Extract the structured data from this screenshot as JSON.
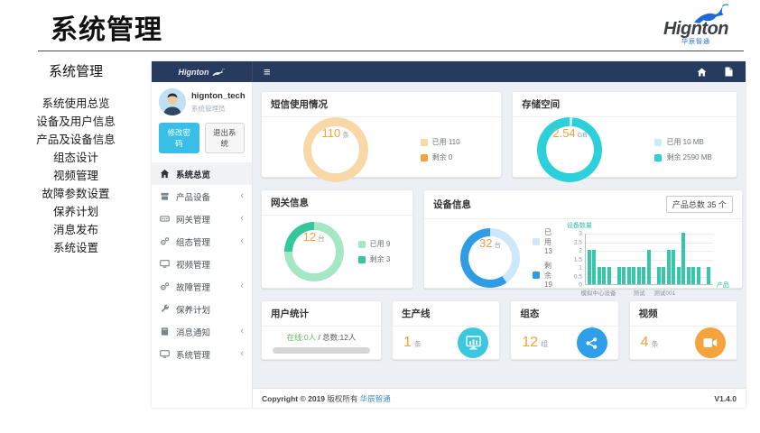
{
  "page": {
    "title": "系统管理"
  },
  "brand": {
    "name": "Hignton",
    "subtitle": "华辰智通"
  },
  "outer_sidebar": {
    "heading": "系统管理",
    "items": [
      "系统使用总览",
      "设备及用户信息",
      "产品及设备信息",
      "组态设计",
      "视频管理",
      "故障参数设置",
      "保养计划",
      "消息发布",
      "系统设置"
    ]
  },
  "app": {
    "logo": "Hignton",
    "user": {
      "name": "hignton_tech",
      "role": "系统管理员",
      "change_password": "修改密码",
      "logout": "退出系统"
    },
    "menu": [
      {
        "label": "系统总览",
        "icon": "home-icon",
        "active": true,
        "expandable": false
      },
      {
        "label": "产品设备",
        "icon": "box-icon",
        "active": false,
        "expandable": true
      },
      {
        "label": "网关管理",
        "icon": "gateway-icon",
        "active": false,
        "expandable": true
      },
      {
        "label": "组态管理",
        "icon": "gears-icon",
        "active": false,
        "expandable": true
      },
      {
        "label": "视频管理",
        "icon": "monitor-icon",
        "active": false,
        "expandable": false
      },
      {
        "label": "故障管理",
        "icon": "gears-icon",
        "active": false,
        "expandable": true
      },
      {
        "label": "保养计划",
        "icon": "wrench-icon",
        "active": false,
        "expandable": false
      },
      {
        "label": "消息通知",
        "icon": "book-icon",
        "active": false,
        "expandable": true
      },
      {
        "label": "系统管理",
        "icon": "monitor-icon",
        "active": false,
        "expandable": true
      }
    ],
    "footer": {
      "copyright": "Copyright © 2019",
      "rights": "版权所有",
      "company": "华辰智通",
      "version": "V1.4.0"
    }
  },
  "chart_data": [
    {
      "type": "donut",
      "title": "短信使用情况",
      "center": {
        "value": "110",
        "unit": "条"
      },
      "segments": [
        {
          "label": "已用",
          "value": 110,
          "color": "#f9d8a7"
        },
        {
          "label": "剩余",
          "value": 0,
          "color": "#f0a23c"
        }
      ],
      "legend": [
        "已用 110",
        "剩余 0"
      ]
    },
    {
      "type": "donut",
      "title": "存储空间",
      "center": {
        "value": "2.54",
        "unit": "GB"
      },
      "segments": [
        {
          "label": "已用",
          "value": 10,
          "unit": "MB",
          "color": "#c7eef3"
        },
        {
          "label": "剩余",
          "value": 2590,
          "unit": "MB",
          "color": "#2cd0da"
        }
      ],
      "legend": [
        "已用 10 MB",
        "剩余 2590 MB"
      ]
    },
    {
      "type": "donut",
      "title": "网关信息",
      "center": {
        "value": "12",
        "unit": "台"
      },
      "segments": [
        {
          "label": "已用",
          "value": 9,
          "color": "#a5e7c5"
        },
        {
          "label": "剩余",
          "value": 3,
          "color": "#34c79c"
        }
      ],
      "legend": [
        "已用 9",
        "剩余 3"
      ]
    },
    {
      "type": "donut",
      "title": "设备信息",
      "center": {
        "value": "32",
        "unit": "台"
      },
      "segments": [
        {
          "label": "已用",
          "value": 13,
          "color": "#cde8fa"
        },
        {
          "label": "剩余",
          "value": 19,
          "color": "#2f9ce4"
        }
      ],
      "legend": [
        "已用 13",
        "剩余 19"
      ]
    },
    {
      "type": "bar",
      "badge": "产品总数 35 个",
      "ylabel": "设备数量",
      "xlabel": "产品",
      "ylim": [
        0,
        3
      ],
      "yticks": [
        0,
        0.5,
        1,
        1.5,
        2,
        2.5,
        3
      ],
      "grid": true,
      "categories": [
        "模拟中心设备",
        "测试",
        "测试001"
      ],
      "category_positions": [
        0.1,
        0.42,
        0.62
      ],
      "values": [
        2,
        2,
        1,
        1,
        1,
        0,
        1,
        1,
        1,
        1,
        1,
        1,
        2,
        0,
        1,
        1,
        2,
        2,
        1,
        3,
        1,
        1,
        1,
        0,
        1
      ],
      "color": "#36c6a8"
    }
  ],
  "stats": {
    "users": {
      "title": "用户统计",
      "online": "在线:0人",
      "sep": " / ",
      "total": "总数:12人"
    },
    "lines": {
      "title": "生产线",
      "value": "1",
      "unit": "条",
      "color": "#3bc7dd"
    },
    "config": {
      "title": "组态",
      "value": "12",
      "unit": "组",
      "color": "#2e9fe8"
    },
    "video": {
      "title": "视频",
      "value": "4",
      "unit": "条",
      "color": "#f5a33c"
    }
  }
}
